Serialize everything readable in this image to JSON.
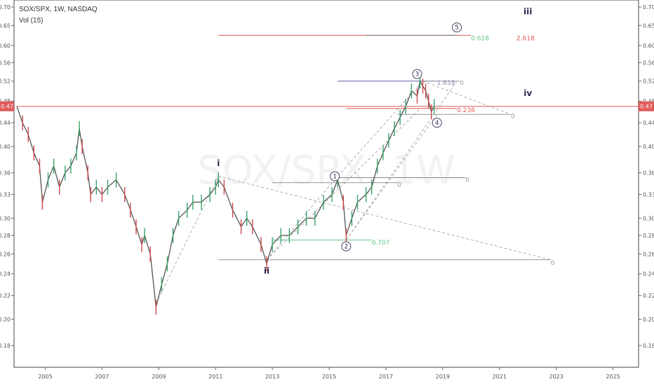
{
  "header": {
    "symbol_line": "SOX/SPX, 1W, NASDAQ",
    "volume_line": "Vol (15)"
  },
  "watermark": "SOX/SPX, 1W",
  "price_badge": {
    "left": "0.47",
    "right": "0.47",
    "value": 0.47,
    "color": "#e05a5a"
  },
  "chart_data": {
    "type": "line",
    "title": "SOX/SPX, 1W, NASDAQ",
    "xlabel": "",
    "ylabel": "",
    "y_scale": "log",
    "ylim": [
      0.165,
      0.72
    ],
    "xlim": [
      2003.9,
      2025.9
    ],
    "y_ticks": [
      "0.70",
      "0.65",
      "0.60",
      "0.56",
      "0.52",
      "0.48",
      "0.44",
      "0.40",
      "0.36",
      "0.33",
      "0.30",
      "0.28",
      "0.26",
      "0.24",
      "0.22",
      "0.20",
      "0.18"
    ],
    "x_ticks": [
      "2005",
      "2007",
      "2009",
      "2011",
      "2013",
      "2015",
      "2017",
      "2019",
      "2021",
      "2023",
      "2025"
    ],
    "series": [
      {
        "color": "#555555",
        "points": [
          [
            2004.0,
            0.47
          ],
          [
            2004.2,
            0.44
          ],
          [
            2004.4,
            0.42
          ],
          [
            2004.6,
            0.39
          ],
          [
            2004.8,
            0.37
          ],
          [
            2004.9,
            0.32
          ],
          [
            2005.1,
            0.35
          ],
          [
            2005.3,
            0.37
          ],
          [
            2005.5,
            0.34
          ],
          [
            2005.7,
            0.36
          ],
          [
            2005.9,
            0.37
          ],
          [
            2006.1,
            0.39
          ],
          [
            2006.2,
            0.43
          ],
          [
            2006.3,
            0.4
          ],
          [
            2006.5,
            0.36
          ],
          [
            2006.6,
            0.33
          ],
          [
            2006.8,
            0.34
          ],
          [
            2007.0,
            0.33
          ],
          [
            2007.2,
            0.34
          ],
          [
            2007.5,
            0.35
          ],
          [
            2007.8,
            0.33
          ],
          [
            2008.0,
            0.31
          ],
          [
            2008.2,
            0.29
          ],
          [
            2008.4,
            0.27
          ],
          [
            2008.5,
            0.28
          ],
          [
            2008.7,
            0.26
          ],
          [
            2008.9,
            0.21
          ],
          [
            2009.1,
            0.23
          ],
          [
            2009.3,
            0.25
          ],
          [
            2009.5,
            0.28
          ],
          [
            2009.7,
            0.3
          ],
          [
            2010.0,
            0.31
          ],
          [
            2010.2,
            0.32
          ],
          [
            2010.5,
            0.32
          ],
          [
            2010.8,
            0.33
          ],
          [
            2011.0,
            0.34
          ],
          [
            2011.1,
            0.35
          ],
          [
            2011.3,
            0.34
          ],
          [
            2011.6,
            0.31
          ],
          [
            2011.9,
            0.29
          ],
          [
            2012.1,
            0.3
          ],
          [
            2012.3,
            0.29
          ],
          [
            2012.6,
            0.27
          ],
          [
            2012.8,
            0.25
          ],
          [
            2013.0,
            0.27
          ],
          [
            2013.3,
            0.28
          ],
          [
            2013.6,
            0.28
          ],
          [
            2013.9,
            0.29
          ],
          [
            2014.2,
            0.3
          ],
          [
            2014.5,
            0.3
          ],
          [
            2014.8,
            0.32
          ],
          [
            2015.1,
            0.33
          ],
          [
            2015.3,
            0.35
          ],
          [
            2015.5,
            0.32
          ],
          [
            2015.6,
            0.28
          ],
          [
            2015.8,
            0.3
          ],
          [
            2016.0,
            0.32
          ],
          [
            2016.3,
            0.33
          ],
          [
            2016.5,
            0.34
          ],
          [
            2016.7,
            0.37
          ],
          [
            2016.9,
            0.39
          ],
          [
            2017.1,
            0.41
          ],
          [
            2017.3,
            0.43
          ],
          [
            2017.5,
            0.45
          ],
          [
            2017.7,
            0.47
          ],
          [
            2017.9,
            0.5
          ],
          [
            2018.1,
            0.49
          ],
          [
            2018.2,
            0.52
          ],
          [
            2018.3,
            0.51
          ],
          [
            2018.4,
            0.5
          ],
          [
            2018.5,
            0.48
          ],
          [
            2018.6,
            0.46
          ],
          [
            2018.7,
            0.47
          ]
        ]
      }
    ],
    "annotations": {
      "wave_labels": [
        {
          "text": "i",
          "x": 2011.1,
          "y": 0.37
        },
        {
          "text": "ii",
          "x": 2012.8,
          "y": 0.24
        },
        {
          "text": "iii",
          "x": 2022.0,
          "y": 0.68
        },
        {
          "text": "iv",
          "x": 2022.0,
          "y": 0.49
        }
      ],
      "circled_labels": [
        {
          "text": "1",
          "x": 2015.2,
          "y": 0.355
        },
        {
          "text": "2",
          "x": 2015.6,
          "y": 0.268
        },
        {
          "text": "3",
          "x": 2018.1,
          "y": 0.535
        },
        {
          "text": "4",
          "x": 2018.8,
          "y": 0.44
        },
        {
          "text": "5",
          "x": 2019.5,
          "y": 0.645
        }
      ],
      "levels": [
        {
          "y": 0.625,
          "x1": 2011.1,
          "x2": 2020.0,
          "color": "#e05a5a"
        },
        {
          "y": 0.625,
          "x1": 2016.3,
          "x2": 2019.5,
          "color": "#777777"
        },
        {
          "y": 0.52,
          "x1": 2015.3,
          "x2": 2018.8,
          "color": "#5a5aa8"
        },
        {
          "y": 0.52,
          "x1": 2018.3,
          "x2": 2019.6,
          "color": "#999999"
        },
        {
          "y": 0.47,
          "x1": 2004.0,
          "x2": 2026.4,
          "color": "#e05a5a"
        },
        {
          "y": 0.466,
          "x1": 2015.6,
          "x2": 2019.5,
          "color": "#e05a5a"
        },
        {
          "y": 0.455,
          "x1": 2017.4,
          "x2": 2021.4,
          "color": "#999999"
        },
        {
          "y": 0.353,
          "x1": 2015.3,
          "x2": 2019.8,
          "color": "#888888"
        },
        {
          "y": 0.346,
          "x1": 2013.0,
          "x2": 2017.4,
          "color": "#999999"
        },
        {
          "y": 0.275,
          "x1": 2013.0,
          "x2": 2016.5,
          "color": "#5ec48a"
        },
        {
          "y": 0.254,
          "x1": 2011.1,
          "x2": 2022.8,
          "color": "#999999"
        }
      ],
      "level_texts": [
        {
          "text": "0.618",
          "x": 2020.0,
          "y": 0.618,
          "color": "#5ec48a"
        },
        {
          "text": "2.618",
          "x": 2021.6,
          "y": 0.618,
          "color": "#e05a5a"
        },
        {
          "text": "1.618",
          "x": 2018.8,
          "y": 0.517,
          "color": "#8a8ab8"
        },
        {
          "text": "0",
          "x": 2019.6,
          "y": 0.517,
          "color": "#999999"
        },
        {
          "text": "0.236",
          "x": 2019.5,
          "y": 0.463,
          "color": "#e05a5a"
        },
        {
          "text": "0",
          "x": 2021.4,
          "y": 0.452,
          "color": "#999999"
        },
        {
          "text": "0",
          "x": 2019.8,
          "y": 0.35,
          "color": "#999999"
        },
        {
          "text": "0",
          "x": 2017.4,
          "y": 0.343,
          "color": "#999999"
        },
        {
          "text": "0.707",
          "x": 2016.5,
          "y": 0.272,
          "color": "#5ec48a"
        },
        {
          "text": "0",
          "x": 2022.8,
          "y": 0.251,
          "color": "#999999"
        }
      ],
      "trend_lines": [
        {
          "x1": 2008.9,
          "y1": 0.213,
          "x2": 2011.1,
          "y2": 0.355
        },
        {
          "x1": 2011.1,
          "y1": 0.355,
          "x2": 2022.8,
          "y2": 0.254
        },
        {
          "x1": 2012.8,
          "y1": 0.254,
          "x2": 2015.3,
          "y2": 0.355
        },
        {
          "x1": 2012.8,
          "y1": 0.254,
          "x2": 2018.2,
          "y2": 0.465
        },
        {
          "x1": 2015.3,
          "y1": 0.355,
          "x2": 2018.3,
          "y2": 0.52
        },
        {
          "x1": 2015.6,
          "y1": 0.275,
          "x2": 2019.5,
          "y2": 0.52
        },
        {
          "x1": 2015.6,
          "y1": 0.275,
          "x2": 2018.8,
          "y2": 0.455
        },
        {
          "x1": 2018.3,
          "y1": 0.52,
          "x2": 2021.4,
          "y2": 0.455
        }
      ]
    }
  }
}
